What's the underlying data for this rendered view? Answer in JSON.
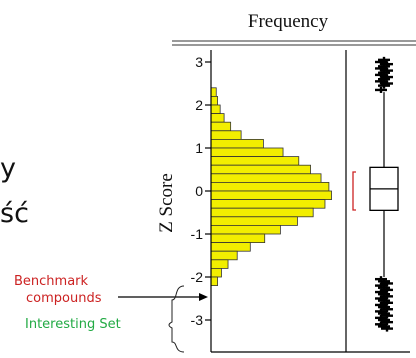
{
  "chart_data": {
    "type": "bar",
    "orientation": "horizontal",
    "title": "Frequency",
    "ylabel": "Z Score",
    "ylim": [
      -3.4,
      3.3
    ],
    "yticks": [
      3,
      2,
      1,
      0,
      -1,
      -2,
      -3
    ],
    "ytick_labels": [
      "3",
      "2",
      "1",
      "0",
      "-1",
      "-2",
      "-3"
    ],
    "bar_color": "#f2ee00",
    "bins": [
      {
        "y0": 2.2,
        "y1": 2.4,
        "value": 4
      },
      {
        "y0": 2.0,
        "y1": 2.2,
        "value": 5
      },
      {
        "y0": 1.8,
        "y1": 2.0,
        "value": 7
      },
      {
        "y0": 1.6,
        "y1": 1.8,
        "value": 10
      },
      {
        "y0": 1.4,
        "y1": 1.6,
        "value": 15
      },
      {
        "y0": 1.2,
        "y1": 1.4,
        "value": 23
      },
      {
        "y0": 1.0,
        "y1": 1.2,
        "value": 40
      },
      {
        "y0": 0.8,
        "y1": 1.0,
        "value": 55
      },
      {
        "y0": 0.6,
        "y1": 0.8,
        "value": 67
      },
      {
        "y0": 0.4,
        "y1": 0.6,
        "value": 76
      },
      {
        "y0": 0.2,
        "y1": 0.4,
        "value": 84
      },
      {
        "y0": 0.0,
        "y1": 0.2,
        "value": 90
      },
      {
        "y0": -0.2,
        "y1": 0.0,
        "value": 92
      },
      {
        "y0": -0.4,
        "y1": -0.2,
        "value": 87
      },
      {
        "y0": -0.6,
        "y1": -0.4,
        "value": 78
      },
      {
        "y0": -0.8,
        "y1": -0.6,
        "value": 66
      },
      {
        "y0": -1.0,
        "y1": -0.8,
        "value": 53
      },
      {
        "y0": -1.2,
        "y1": -1.0,
        "value": 41
      },
      {
        "y0": -1.4,
        "y1": -1.2,
        "value": 30
      },
      {
        "y0": -1.6,
        "y1": -1.4,
        "value": 20
      },
      {
        "y0": -1.8,
        "y1": -1.6,
        "value": 13
      },
      {
        "y0": -2.0,
        "y1": -1.8,
        "value": 8
      },
      {
        "y0": -2.2,
        "y1": -2.0,
        "value": 5
      }
    ],
    "boxplot": {
      "q1": -0.45,
      "median": 0.05,
      "q3": 0.55,
      "whisker_low": -2.0,
      "whisker_high": 2.3,
      "outliers_high": [
        2.35,
        2.45,
        2.5,
        2.55,
        2.6,
        2.65,
        2.7,
        2.75,
        2.8,
        2.85,
        2.9,
        2.95,
        3.0,
        3.05
      ],
      "outliers_low": [
        -2.05,
        -2.1,
        -2.15,
        -2.2,
        -2.25,
        -2.3,
        -2.35,
        -2.4,
        -2.45,
        -2.5,
        -2.55,
        -2.6,
        -2.65,
        -2.7,
        -2.75,
        -2.8,
        -2.85,
        -2.9,
        -2.95,
        -3.0,
        -3.05,
        -3.1,
        -3.15,
        -3.2
      ]
    },
    "annotations": {
      "benchmark_line1": "Benchmark",
      "benchmark_line2": "compounds",
      "benchmark_color": "#cc2222",
      "interesting_set": "Interesting Set",
      "interesting_color": "#22aa44",
      "bracket_color": "#cc2222"
    }
  },
  "background_text": {
    "line1": "y",
    "line2": "ść"
  }
}
